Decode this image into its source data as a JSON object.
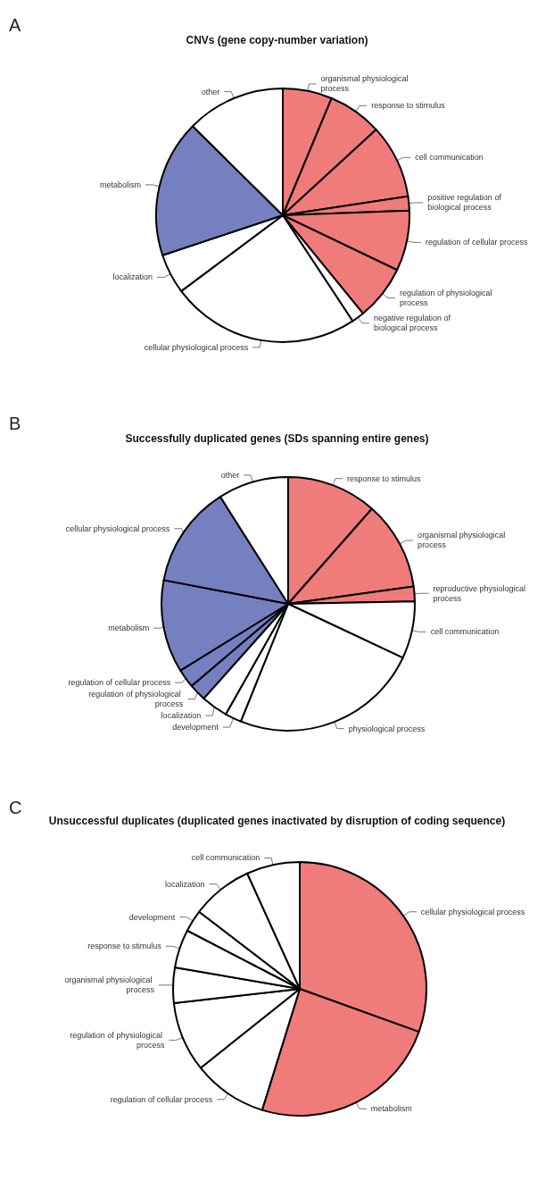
{
  "chart_data": [
    {
      "type": "pie",
      "title": "CNVs (gene copy-number variation)",
      "annotations": [
        "A"
      ],
      "categories": [
        "organismal physiological process",
        "response to stimulus",
        "cell communication",
        "positive regulation of biological process",
        "regulation of cellular process",
        "regulation of physiological process",
        "negative regulation of biological process",
        "cellular physiological process",
        "localization",
        "metabolism",
        "other"
      ],
      "values": [
        6.3,
        6.9,
        9.4,
        1.8,
        7.7,
        7.0,
        1.6,
        24.1,
        5.1,
        17.5,
        12.6
      ],
      "colors": [
        "#f07b7b",
        "#f07b7b",
        "#f07b7b",
        "#f07b7b",
        "#f07b7b",
        "#f07b7b",
        "#ffffff",
        "#ffffff",
        "#ffffff",
        "#7580c0",
        "#ffffff"
      ]
    },
    {
      "type": "pie",
      "title": "Successfully duplicated genes (SDs spanning entire genes)",
      "annotations": [
        "B"
      ],
      "categories": [
        "response to stimulus",
        "organismal physiological process",
        "reproductive physiological process",
        "cell communication",
        "physiological process",
        "development",
        "localization",
        "regulation of physiological process",
        "regulation of cellular process",
        "metabolism",
        "cellular physiological process",
        "other"
      ],
      "values": [
        11.5,
        11.3,
        1.9,
        7.3,
        24.1,
        2.1,
        3.4,
        2.2,
        2.4,
        11.8,
        13.0,
        9.0
      ],
      "colors": [
        "#f07b7b",
        "#f07b7b",
        "#f07b7b",
        "#ffffff",
        "#ffffff",
        "#ffffff",
        "#ffffff",
        "#7580c0",
        "#7580c0",
        "#7580c0",
        "#7580c0",
        "#ffffff"
      ]
    },
    {
      "type": "pie",
      "title": "Unsuccessful duplicates (duplicated genes inactivated by disruption of coding sequence)",
      "annotations": [
        "C"
      ],
      "categories": [
        "cellular physiological process",
        "metabolism",
        "regulation of cellular process",
        "regulation of physiological process",
        "organismal physiological process",
        "response to stimulus",
        "development",
        "localization",
        "cell communication"
      ],
      "values": [
        30.5,
        24.3,
        9.5,
        8.9,
        4.5,
        4.9,
        2.8,
        7.8,
        6.8
      ],
      "colors": [
        "#f07b7b",
        "#f07b7b",
        "#ffffff",
        "#ffffff",
        "#ffffff",
        "#ffffff",
        "#ffffff",
        "#ffffff",
        "#ffffff"
      ]
    }
  ]
}
